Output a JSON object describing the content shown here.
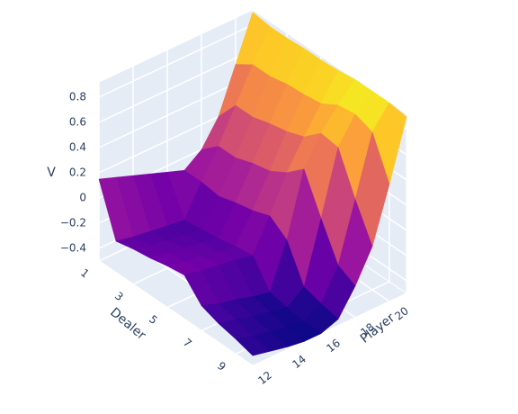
{
  "chart_data": {
    "type": "surface",
    "x_label": "Dealer",
    "y_label": "Player",
    "z_label": "V",
    "x": [
      1,
      2,
      3,
      4,
      5,
      6,
      7,
      8,
      9,
      10
    ],
    "y": [
      12,
      13,
      14,
      15,
      16,
      17,
      18,
      19,
      20,
      21
    ],
    "z": [
      [
        0.15,
        0.1,
        0.05,
        0.0,
        -0.05,
        -0.1,
        0.0,
        0.2,
        0.55,
        0.9
      ],
      [
        -0.25,
        -0.28,
        -0.3,
        -0.32,
        -0.34,
        -0.1,
        0.12,
        0.38,
        0.64,
        0.88
      ],
      [
        -0.22,
        -0.25,
        -0.28,
        -0.3,
        -0.32,
        -0.12,
        0.12,
        0.38,
        0.64,
        0.88
      ],
      [
        -0.2,
        -0.22,
        -0.25,
        -0.27,
        -0.3,
        -0.08,
        0.17,
        0.42,
        0.67,
        0.89
      ],
      [
        -0.17,
        -0.2,
        -0.22,
        -0.25,
        -0.27,
        -0.05,
        0.2,
        0.45,
        0.68,
        0.89
      ],
      [
        -0.15,
        -0.18,
        -0.2,
        -0.22,
        -0.25,
        0.0,
        0.28,
        0.5,
        0.7,
        0.9
      ],
      [
        -0.3,
        -0.35,
        -0.38,
        -0.42,
        -0.45,
        -0.1,
        0.4,
        0.62,
        0.78,
        0.92
      ],
      [
        -0.35,
        -0.38,
        -0.42,
        -0.45,
        -0.48,
        -0.38,
        0.1,
        0.6,
        0.8,
        0.92
      ],
      [
        -0.38,
        -0.42,
        -0.45,
        -0.48,
        -0.5,
        -0.42,
        -0.18,
        0.28,
        0.75,
        0.92
      ],
      [
        -0.42,
        -0.45,
        -0.48,
        -0.5,
        -0.5,
        -0.45,
        -0.25,
        0.0,
        0.43,
        0.9
      ]
    ],
    "colorscale": "Plasma",
    "xlim": [
      1,
      10
    ],
    "ylim": [
      12,
      21
    ],
    "zlim": [
      -0.5,
      0.92
    ],
    "xticks": [
      1,
      3,
      5,
      7,
      9
    ],
    "yticks": [
      12,
      14,
      16,
      18,
      20
    ],
    "zticks": [
      {
        "value": -0.4,
        "label": "−0.4"
      },
      {
        "value": -0.2,
        "label": "−0.2"
      },
      0,
      0.2,
      0.4,
      0.6,
      0.8
    ],
    "grid": true
  }
}
